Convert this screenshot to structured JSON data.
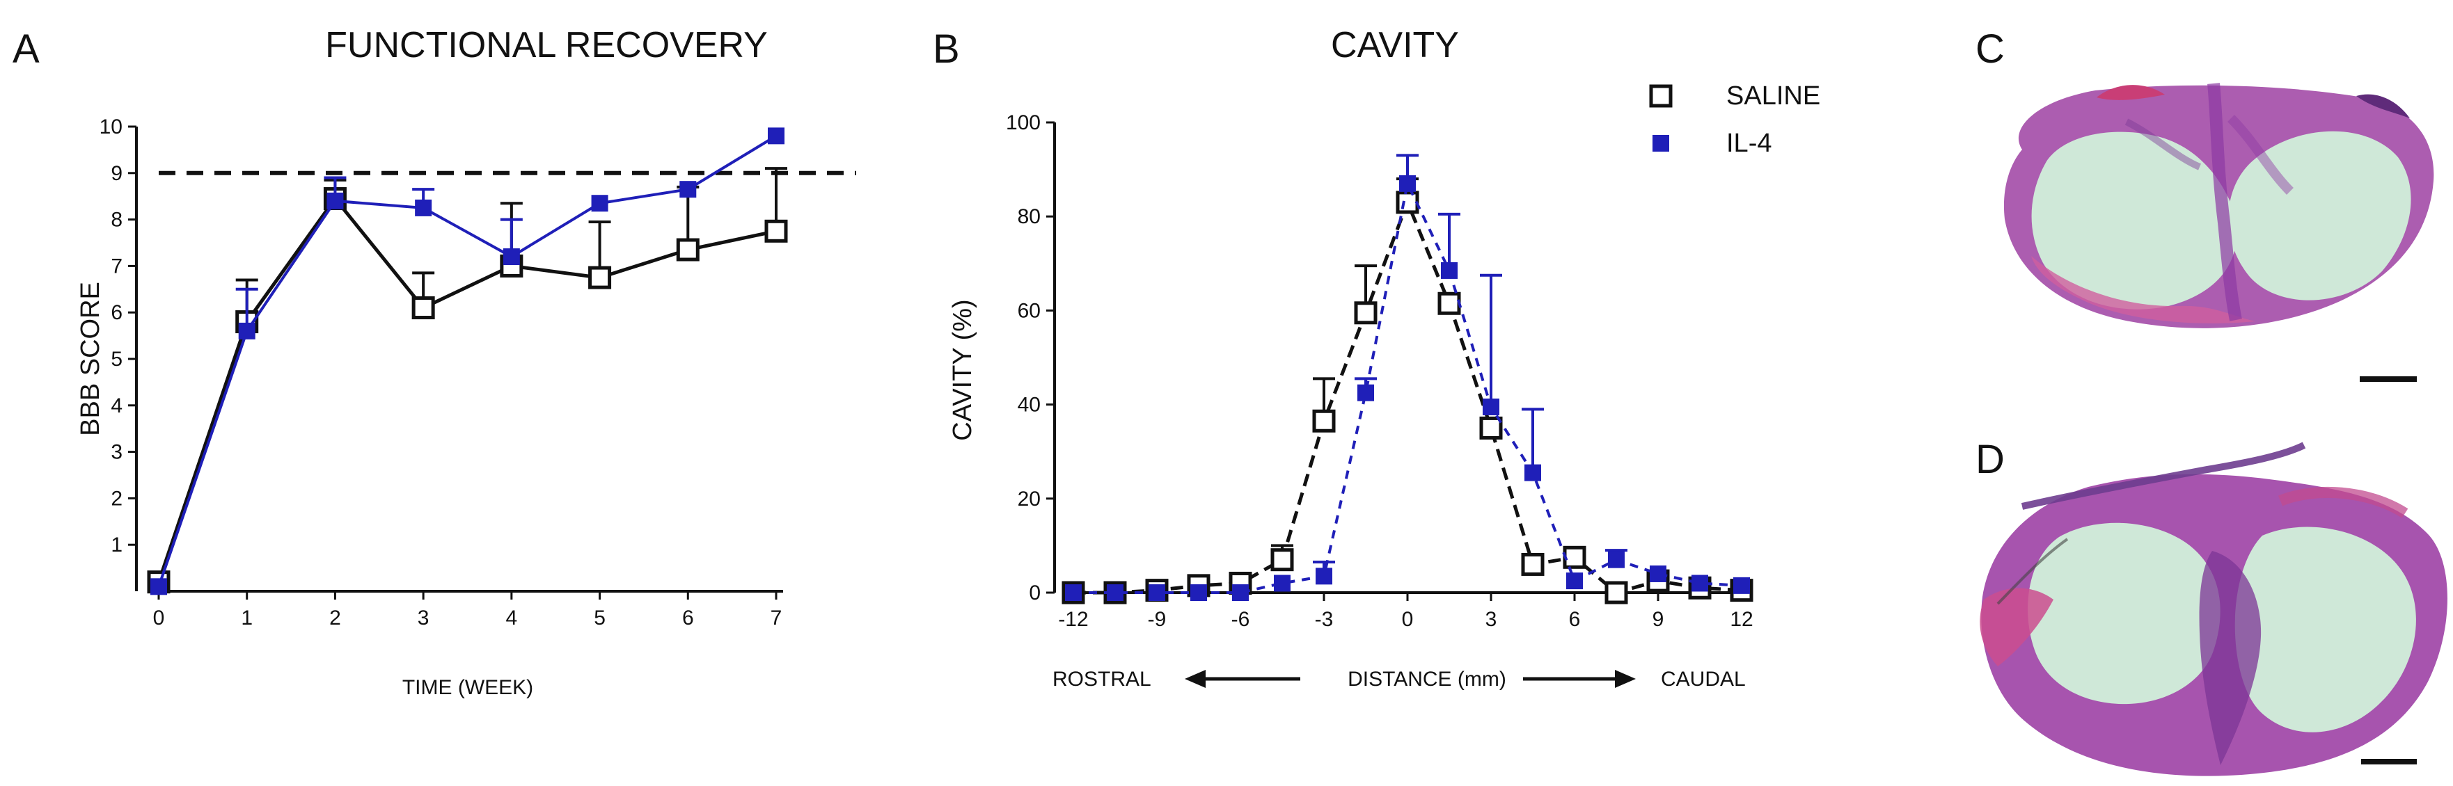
{
  "panels": {
    "a": "A",
    "b": "B",
    "c": "C",
    "d": "D"
  },
  "colors": {
    "saline": "#111111",
    "il4": "#1f1fb8",
    "tissue_pink": "#c45aa8",
    "tissue_purple": "#7d3f9c",
    "cavity_green": "#cfe8d8"
  },
  "chart_data": [
    {
      "type": "line",
      "title": "FUNCTIONAL RECOVERY",
      "xlabel": "TIME (WEEK)",
      "ylabel": "BBB SCORE",
      "x": [
        0,
        1,
        2,
        3,
        4,
        5,
        6,
        7
      ],
      "xlim": [
        0,
        7
      ],
      "ylim": [
        0,
        10
      ],
      "xticks": [
        "0",
        "1",
        "2",
        "3",
        "4",
        "5",
        "6",
        "7"
      ],
      "yticks": [
        "1",
        "2",
        "3",
        "4",
        "5",
        "6",
        "7",
        "8",
        "9",
        "10"
      ],
      "reference_line": 9,
      "series": [
        {
          "name": "SALINE",
          "marker": "open-square",
          "values": [
            0.2,
            5.8,
            8.45,
            6.1,
            7.0,
            6.75,
            7.35,
            7.75
          ],
          "errors": [
            0.0,
            0.9,
            0.4,
            0.75,
            1.35,
            1.2,
            1.35,
            1.35
          ]
        },
        {
          "name": "IL-4",
          "marker": "filled-square",
          "values": [
            0.1,
            5.6,
            8.4,
            8.25,
            7.2,
            8.35,
            8.65,
            9.8
          ],
          "errors": [
            0.0,
            0.9,
            0.5,
            0.4,
            0.8,
            0.0,
            0.0,
            0.0
          ]
        }
      ]
    },
    {
      "type": "line",
      "title": "CAVITY",
      "xlabel": "DISTANCE (mm)",
      "ylabel": "CAVITY (%)",
      "direction_left": "ROSTRAL",
      "direction_right": "CAUDAL",
      "x": [
        -12,
        -10.5,
        -9,
        -7.5,
        -6,
        -4.5,
        -3,
        -1.5,
        0,
        1.5,
        3,
        4.5,
        6,
        7.5,
        9,
        10.5,
        12
      ],
      "xlim": [
        -12,
        12
      ],
      "ylim": [
        0,
        100
      ],
      "xticks": [
        "-12",
        "-9",
        "-6",
        "-3",
        "0",
        "3",
        "6",
        "9",
        "12"
      ],
      "yticks": [
        "0",
        "20",
        "40",
        "60",
        "80",
        "100"
      ],
      "legend_position": "top-right",
      "series": [
        {
          "name": "SALINE",
          "marker": "open-square",
          "values": [
            0,
            0,
            0.5,
            1.5,
            2,
            7,
            36.5,
            59.5,
            83,
            61.5,
            35,
            6,
            7.5,
            0,
            2.5,
            1,
            0.5
          ],
          "errors": [
            0,
            0,
            0,
            0,
            0,
            3,
            9,
            10,
            5,
            0,
            0,
            2,
            1,
            0,
            0,
            0,
            0
          ]
        },
        {
          "name": "IL-4",
          "marker": "filled-square",
          "values": [
            0,
            0,
            0,
            0,
            0,
            2,
            3.5,
            42.5,
            87,
            68.5,
            39.5,
            25.5,
            2.5,
            7,
            4,
            2,
            1.5
          ],
          "errors": [
            0,
            0,
            0,
            0,
            0,
            0,
            3,
            3,
            6,
            12,
            28,
            13.5,
            0,
            2,
            0,
            0,
            0
          ]
        }
      ]
    }
  ]
}
